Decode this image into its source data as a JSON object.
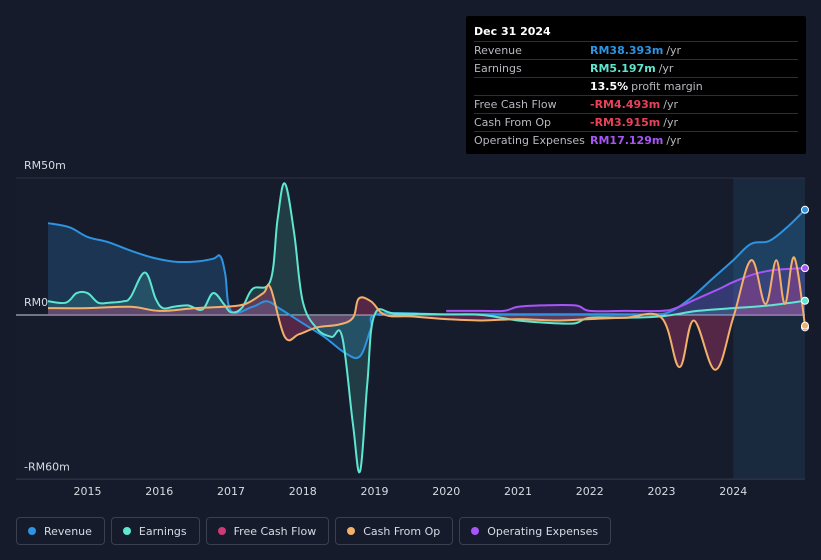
{
  "tooltip": {
    "date": "Dec 31 2024",
    "rows": [
      {
        "label": "Revenue",
        "value": "RM38.393m",
        "unit": "/yr",
        "color": "#2e93e0"
      },
      {
        "label": "Earnings",
        "value": "RM5.197m",
        "unit": "/yr",
        "color": "#5ee6d0"
      },
      {
        "label": "",
        "value": "13.5%",
        "unit": "profit margin",
        "color": "#ffffff"
      },
      {
        "label": "Free Cash Flow",
        "value": "-RM4.493m",
        "unit": "/yr",
        "color": "#e8425a"
      },
      {
        "label": "Cash From Op",
        "value": "-RM3.915m",
        "unit": "/yr",
        "color": "#e8425a"
      },
      {
        "label": "Operating Expenses",
        "value": "RM17.129m",
        "unit": "/yr",
        "color": "#a855f7"
      }
    ]
  },
  "legend": [
    {
      "label": "Revenue",
      "color": "#2e93e0"
    },
    {
      "label": "Earnings",
      "color": "#5ee6d0"
    },
    {
      "label": "Free Cash Flow",
      "color": "#cc3b78"
    },
    {
      "label": "Cash From Op",
      "color": "#f2b06b"
    },
    {
      "label": "Operating Expenses",
      "color": "#a855f7"
    }
  ],
  "chart_data": {
    "type": "line",
    "y_labels": [
      {
        "value": 50,
        "label": "RM50m"
      },
      {
        "value": 0,
        "label": "RM0"
      },
      {
        "value": -60,
        "label": "-RM60m"
      }
    ],
    "ylim": [
      -60,
      50
    ],
    "xlim": [
      2014.45,
      2025.0
    ],
    "x_ticks": [
      2015,
      2016,
      2017,
      2018,
      2019,
      2020,
      2021,
      2022,
      2023,
      2024
    ],
    "x_tick_labels": [
      "2015",
      "2016",
      "2017",
      "2018",
      "2019",
      "2020",
      "2021",
      "2022",
      "2023",
      "2024"
    ],
    "forecast_start": 2024.0,
    "series": [
      {
        "name": "Revenue",
        "color": "#2e93e0",
        "fill": true,
        "points": [
          [
            2014.45,
            33.5
          ],
          [
            2014.75,
            32
          ],
          [
            2015.0,
            28.5
          ],
          [
            2015.3,
            26.5
          ],
          [
            2015.6,
            23.5
          ],
          [
            2015.9,
            21
          ],
          [
            2016.2,
            19.5
          ],
          [
            2016.5,
            19.5
          ],
          [
            2016.75,
            20.5
          ],
          [
            2016.85,
            21.5
          ],
          [
            2016.92,
            15
          ],
          [
            2017.0,
            1.5
          ],
          [
            2017.3,
            3
          ],
          [
            2017.5,
            5
          ],
          [
            2017.7,
            2
          ],
          [
            2018.0,
            -3
          ],
          [
            2018.3,
            -8
          ],
          [
            2018.6,
            -14
          ],
          [
            2018.8,
            -15
          ],
          [
            2018.95,
            -5
          ],
          [
            2019.05,
            0.3
          ],
          [
            2020.0,
            0.3
          ],
          [
            2021.0,
            0.3
          ],
          [
            2022.0,
            0.3
          ],
          [
            2022.8,
            0.3
          ],
          [
            2023.1,
            1
          ],
          [
            2023.4,
            6
          ],
          [
            2023.7,
            13
          ],
          [
            2024.0,
            20
          ],
          [
            2024.25,
            26
          ],
          [
            2024.5,
            27
          ],
          [
            2024.75,
            32
          ],
          [
            2025.0,
            38.4
          ]
        ]
      },
      {
        "name": "Earnings",
        "color": "#5ee6d0",
        "fill": true,
        "points": [
          [
            2014.45,
            5
          ],
          [
            2014.7,
            4.5
          ],
          [
            2014.85,
            8
          ],
          [
            2015.0,
            8
          ],
          [
            2015.15,
            4.5
          ],
          [
            2015.3,
            4.5
          ],
          [
            2015.5,
            5
          ],
          [
            2015.6,
            6.5
          ],
          [
            2015.8,
            15.5
          ],
          [
            2015.95,
            6
          ],
          [
            2016.05,
            2.5
          ],
          [
            2016.2,
            3
          ],
          [
            2016.4,
            3.5
          ],
          [
            2016.6,
            2
          ],
          [
            2016.75,
            8
          ],
          [
            2016.9,
            4
          ],
          [
            2017.0,
            1
          ],
          [
            2017.15,
            2.5
          ],
          [
            2017.3,
            9.5
          ],
          [
            2017.55,
            12.5
          ],
          [
            2017.65,
            35
          ],
          [
            2017.75,
            48
          ],
          [
            2017.88,
            30
          ],
          [
            2018.0,
            5
          ],
          [
            2018.2,
            -5
          ],
          [
            2018.4,
            -8
          ],
          [
            2018.55,
            -8
          ],
          [
            2018.7,
            -40
          ],
          [
            2018.8,
            -57
          ],
          [
            2018.9,
            -25
          ],
          [
            2019.0,
            0
          ],
          [
            2019.3,
            0.5
          ],
          [
            2020.0,
            0.2
          ],
          [
            2020.5,
            0
          ],
          [
            2021.0,
            -2
          ],
          [
            2021.5,
            -3
          ],
          [
            2021.8,
            -3
          ],
          [
            2022.0,
            -1
          ],
          [
            2022.5,
            -1
          ],
          [
            2023.0,
            -0.5
          ],
          [
            2023.5,
            1.5
          ],
          [
            2024.0,
            2.5
          ],
          [
            2024.5,
            3.5
          ],
          [
            2025.0,
            5.2
          ]
        ]
      },
      {
        "name": "Free Cash Flow",
        "color": "#cc3b78",
        "fill": true,
        "points": [
          [
            2014.45,
            2.5
          ],
          [
            2015.0,
            2.5
          ],
          [
            2015.6,
            3
          ],
          [
            2016.0,
            1.5
          ],
          [
            2016.5,
            2.5
          ],
          [
            2016.9,
            3
          ],
          [
            2017.2,
            4
          ],
          [
            2017.45,
            8
          ],
          [
            2017.55,
            10
          ],
          [
            2017.75,
            -8
          ],
          [
            2017.95,
            -7
          ],
          [
            2018.2,
            -4.5
          ],
          [
            2018.5,
            -3.5
          ],
          [
            2018.7,
            -1
          ],
          [
            2018.78,
            6
          ],
          [
            2018.95,
            5
          ],
          [
            2019.15,
            0
          ],
          [
            2019.5,
            -0.5
          ],
          [
            2020.0,
            -1.5
          ],
          [
            2020.5,
            -2
          ],
          [
            2021.0,
            -1.5
          ],
          [
            2021.5,
            -2
          ],
          [
            2022.0,
            -1.5
          ],
          [
            2022.5,
            -1
          ],
          [
            2023.0,
            -1
          ],
          [
            2023.25,
            -19
          ],
          [
            2023.45,
            -2
          ],
          [
            2023.75,
            -20
          ],
          [
            2024.0,
            -1
          ],
          [
            2024.25,
            20
          ],
          [
            2024.45,
            4
          ],
          [
            2024.6,
            20
          ],
          [
            2024.72,
            4
          ],
          [
            2024.85,
            21
          ],
          [
            2025.0,
            -4.5
          ]
        ]
      },
      {
        "name": "Cash From Op",
        "color": "#f2b06b",
        "fill": false,
        "points": [
          [
            2014.45,
            2.5
          ],
          [
            2015.0,
            2.5
          ],
          [
            2015.6,
            3
          ],
          [
            2016.0,
            1.5
          ],
          [
            2016.5,
            2.5
          ],
          [
            2016.9,
            3
          ],
          [
            2017.2,
            4
          ],
          [
            2017.45,
            8
          ],
          [
            2017.55,
            10
          ],
          [
            2017.75,
            -8
          ],
          [
            2017.95,
            -7
          ],
          [
            2018.2,
            -4.5
          ],
          [
            2018.5,
            -3.5
          ],
          [
            2018.7,
            -1
          ],
          [
            2018.78,
            6
          ],
          [
            2018.95,
            5
          ],
          [
            2019.15,
            0
          ],
          [
            2019.5,
            -0.5
          ],
          [
            2020.0,
            -1.5
          ],
          [
            2020.5,
            -2
          ],
          [
            2021.0,
            -1.5
          ],
          [
            2021.5,
            -2
          ],
          [
            2022.0,
            -1.5
          ],
          [
            2022.5,
            -1
          ],
          [
            2023.0,
            -1
          ],
          [
            2023.25,
            -19
          ],
          [
            2023.45,
            -2
          ],
          [
            2023.75,
            -20
          ],
          [
            2024.0,
            -1
          ],
          [
            2024.25,
            20
          ],
          [
            2024.45,
            4
          ],
          [
            2024.6,
            20
          ],
          [
            2024.72,
            4
          ],
          [
            2024.85,
            21
          ],
          [
            2025.0,
            -3.9
          ]
        ]
      },
      {
        "name": "Operating Expenses",
        "color": "#a855f7",
        "fill": true,
        "points": [
          [
            2020.0,
            1.5
          ],
          [
            2020.5,
            1.5
          ],
          [
            2020.8,
            1.5
          ],
          [
            2021.0,
            3
          ],
          [
            2021.3,
            3.5
          ],
          [
            2021.8,
            3.5
          ],
          [
            2022.0,
            1.5
          ],
          [
            2022.5,
            1.5
          ],
          [
            2023.0,
            1.5
          ],
          [
            2023.2,
            2.5
          ],
          [
            2023.5,
            6
          ],
          [
            2023.8,
            9.5
          ],
          [
            2024.0,
            12
          ],
          [
            2024.3,
            15
          ],
          [
            2024.6,
            16.5
          ],
          [
            2025.0,
            17.1
          ]
        ]
      }
    ]
  }
}
